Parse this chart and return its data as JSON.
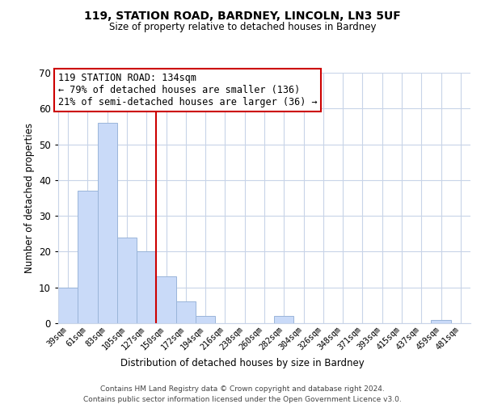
{
  "title_line1": "119, STATION ROAD, BARDNEY, LINCOLN, LN3 5UF",
  "title_line2": "Size of property relative to detached houses in Bardney",
  "xlabel": "Distribution of detached houses by size in Bardney",
  "ylabel": "Number of detached properties",
  "bar_labels": [
    "39sqm",
    "61sqm",
    "83sqm",
    "105sqm",
    "127sqm",
    "150sqm",
    "172sqm",
    "194sqm",
    "216sqm",
    "238sqm",
    "260sqm",
    "282sqm",
    "304sqm",
    "326sqm",
    "348sqm",
    "371sqm",
    "393sqm",
    "415sqm",
    "437sqm",
    "459sqm",
    "481sqm"
  ],
  "bar_values": [
    10,
    37,
    56,
    24,
    20,
    13,
    6,
    2,
    0,
    0,
    0,
    2,
    0,
    0,
    0,
    0,
    0,
    0,
    0,
    1,
    0
  ],
  "bar_color": "#c9daf8",
  "bar_edge_color": "#9ab5d9",
  "vline_x_idx": 4.5,
  "vline_color": "#cc0000",
  "ylim": [
    0,
    70
  ],
  "yticks": [
    0,
    10,
    20,
    30,
    40,
    50,
    60,
    70
  ],
  "annotation_title": "119 STATION ROAD: 134sqm",
  "annotation_line1": "← 79% of detached houses are smaller (136)",
  "annotation_line2": "21% of semi-detached houses are larger (36) →",
  "annotation_box_color": "#ffffff",
  "annotation_box_edge": "#cc0000",
  "footer_line1": "Contains HM Land Registry data © Crown copyright and database right 2024.",
  "footer_line2": "Contains public sector information licensed under the Open Government Licence v3.0.",
  "background_color": "#ffffff",
  "grid_color": "#c8d4e8"
}
